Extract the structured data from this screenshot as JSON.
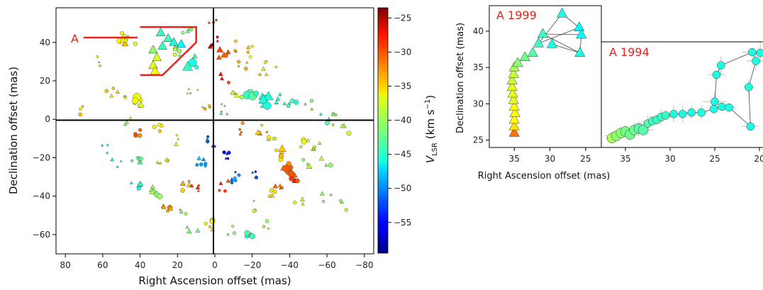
{
  "chart_data": [
    {
      "type": "scatter",
      "xlabel": "Right Ascension offset (mas)",
      "ylabel": "Declination offset (mas)",
      "xlim": [
        85,
        -85
      ],
      "ylim": [
        -70,
        58
      ],
      "xticks": [
        "80",
        "60",
        "40",
        "20",
        "0",
        "−20",
        "−40",
        "−60",
        "−80"
      ],
      "xtick_values": [
        80,
        60,
        40,
        20,
        0,
        -20,
        -40,
        -60,
        -80
      ],
      "yticks": [
        "−60",
        "−40",
        "−20",
        "0",
        "20",
        "40"
      ],
      "ytick_values": [
        -60,
        -40,
        -20,
        0,
        20,
        40
      ],
      "annotation": "A",
      "region_A": [
        [
          40,
          48
        ],
        [
          10,
          48
        ],
        [
          10,
          40
        ],
        [
          28,
          23
        ],
        [
          40,
          23
        ]
      ],
      "colorbar": {
        "label_main": "V",
        "label_sub": "LSR",
        "label_units": " (km s",
        "label_exp": "−1",
        "label_close": ")",
        "ticks": [
          "−25",
          "−30",
          "−35",
          "−40",
          "−45",
          "−50",
          "−55"
        ],
        "tick_values": [
          -25,
          -30,
          -35,
          -40,
          -45,
          -50,
          -55
        ],
        "range": [
          -59.5,
          -23.5
        ]
      },
      "clusters": [
        {
          "x": 72,
          "y": 5,
          "v": -36,
          "n": 3,
          "s": 5
        },
        {
          "x": 50,
          "y": 42,
          "v": -36,
          "n": 6,
          "s": 6
        },
        {
          "x": 45,
          "y": 42,
          "v": -38,
          "n": 4,
          "s": 5
        },
        {
          "x": 60,
          "y": 30,
          "v": -38,
          "n": 3,
          "s": 3
        },
        {
          "x": 55,
          "y": 15,
          "v": -36,
          "n": 4,
          "s": 5
        },
        {
          "x": 50,
          "y": 10,
          "v": -38,
          "n": 3,
          "s": 4
        },
        {
          "x": 48,
          "y": 0,
          "v": -40,
          "n": 3,
          "s": 4
        },
        {
          "x": 42,
          "y": 10,
          "v": -37,
          "n": 6,
          "s": 9
        },
        {
          "x": 40,
          "y": -8,
          "v": -32,
          "n": 4,
          "s": 5
        },
        {
          "x": 58,
          "y": -15,
          "v": -46,
          "n": 3,
          "s": 3
        },
        {
          "x": 52,
          "y": -22,
          "v": -44,
          "n": 3,
          "s": 4
        },
        {
          "x": 42,
          "y": -22,
          "v": -42,
          "n": 6,
          "s": 5
        },
        {
          "x": 42,
          "y": -35,
          "v": -45,
          "n": 5,
          "s": 5
        },
        {
          "x": 32,
          "y": -38,
          "v": -40,
          "n": 6,
          "s": 6
        },
        {
          "x": 25,
          "y": -45,
          "v": -34,
          "n": 5,
          "s": 6
        },
        {
          "x": 18,
          "y": -48,
          "v": -40,
          "n": 3,
          "s": 4
        },
        {
          "x": 15,
          "y": -35,
          "v": -34,
          "n": 4,
          "s": 5
        },
        {
          "x": 28,
          "y": -20,
          "v": -36,
          "n": 4,
          "s": 5
        },
        {
          "x": 30,
          "y": -5,
          "v": -36,
          "n": 4,
          "s": 5
        },
        {
          "x": 22,
          "y": -10,
          "v": -38,
          "n": 3,
          "s": 4
        },
        {
          "x": 12,
          "y": -58,
          "v": -42,
          "n": 3,
          "s": 5
        },
        {
          "x": 2,
          "y": -55,
          "v": -36,
          "n": 5,
          "s": 6
        },
        {
          "x": -8,
          "y": -57,
          "v": -40,
          "n": 3,
          "s": 4
        },
        {
          "x": -20,
          "y": -58,
          "v": -44,
          "n": 4,
          "s": 7
        },
        {
          "x": 8,
          "y": -22,
          "v": -49,
          "n": 6,
          "s": 4
        },
        {
          "x": 2,
          "y": -12,
          "v": -51,
          "n": 5,
          "s": 4
        },
        {
          "x": -5,
          "y": -18,
          "v": -55,
          "n": 5,
          "s": 4
        },
        {
          "x": -12,
          "y": -30,
          "v": -50,
          "n": 6,
          "s": 4
        },
        {
          "x": -20,
          "y": -28,
          "v": -53,
          "n": 4,
          "s": 4
        },
        {
          "x": 10,
          "y": -35,
          "v": -30,
          "n": 4,
          "s": 4
        },
        {
          "x": -5,
          "y": -35,
          "v": -30,
          "n": 4,
          "s": 4
        },
        {
          "x": 20,
          "y": 35,
          "v": -40,
          "n": 5,
          "s": 5
        },
        {
          "x": 15,
          "y": 45,
          "v": -42,
          "n": 4,
          "s": 5
        },
        {
          "x": 12,
          "y": 30,
          "v": -45,
          "n": 4,
          "s": 9
        },
        {
          "x": 2,
          "y": 50,
          "v": -30,
          "n": 3,
          "s": 4
        },
        {
          "x": 0,
          "y": 40,
          "v": -27,
          "n": 4,
          "s": 5
        },
        {
          "x": -5,
          "y": 35,
          "v": -31,
          "n": 5,
          "s": 6
        },
        {
          "x": -12,
          "y": 38,
          "v": -34,
          "n": 3,
          "s": 4
        },
        {
          "x": -15,
          "y": 28,
          "v": -34,
          "n": 4,
          "s": 4
        },
        {
          "x": -20,
          "y": 35,
          "v": -36,
          "n": 4,
          "s": 4
        },
        {
          "x": -25,
          "y": 25,
          "v": -37,
          "n": 4,
          "s": 4
        },
        {
          "x": -30,
          "y": 30,
          "v": -38,
          "n": 3,
          "s": 4
        },
        {
          "x": -5,
          "y": 22,
          "v": -30,
          "n": 3,
          "s": 4
        },
        {
          "x": -12,
          "y": 12,
          "v": -38,
          "n": 4,
          "s": 6
        },
        {
          "x": -20,
          "y": 15,
          "v": -44,
          "n": 6,
          "s": 9
        },
        {
          "x": -28,
          "y": 10,
          "v": -44,
          "n": 6,
          "s": 9
        },
        {
          "x": -35,
          "y": 10,
          "v": -44,
          "n": 4,
          "s": 6
        },
        {
          "x": -42,
          "y": 8,
          "v": -44,
          "n": 4,
          "s": 5
        },
        {
          "x": -50,
          "y": 8,
          "v": -42,
          "n": 3,
          "s": 5
        },
        {
          "x": -58,
          "y": 0,
          "v": -44,
          "n": 3,
          "s": 5
        },
        {
          "x": -65,
          "y": 0,
          "v": -40,
          "n": 4,
          "s": 4
        },
        {
          "x": -70,
          "y": -5,
          "v": -38,
          "n": 3,
          "s": 5
        },
        {
          "x": -48,
          "y": -12,
          "v": -38,
          "n": 4,
          "s": 6
        },
        {
          "x": -55,
          "y": -15,
          "v": -38,
          "n": 4,
          "s": 5
        },
        {
          "x": -48,
          "y": -22,
          "v": -40,
          "n": 4,
          "s": 5
        },
        {
          "x": -60,
          "y": -22,
          "v": -40,
          "n": 3,
          "s": 5
        },
        {
          "x": -25,
          "y": -5,
          "v": -35,
          "n": 4,
          "s": 5
        },
        {
          "x": -30,
          "y": -10,
          "v": -37,
          "n": 5,
          "s": 6
        },
        {
          "x": -35,
          "y": -18,
          "v": -35,
          "n": 5,
          "s": 7
        },
        {
          "x": -38,
          "y": -25,
          "v": -32,
          "n": 6,
          "s": 8
        },
        {
          "x": -42,
          "y": -30,
          "v": -30,
          "n": 5,
          "s": 7
        },
        {
          "x": -35,
          "y": -35,
          "v": -32,
          "n": 4,
          "s": 5
        },
        {
          "x": -30,
          "y": -40,
          "v": -35,
          "n": 4,
          "s": 5
        },
        {
          "x": -45,
          "y": -42,
          "v": -38,
          "n": 3,
          "s": 5
        },
        {
          "x": -60,
          "y": -40,
          "v": -42,
          "n": 3,
          "s": 5
        },
        {
          "x": -68,
          "y": -45,
          "v": -40,
          "n": 3,
          "s": 4
        },
        {
          "x": -12,
          "y": -5,
          "v": -32,
          "n": 4,
          "s": 4
        },
        {
          "x": -20,
          "y": -45,
          "v": -38,
          "n": 3,
          "s": 4
        },
        {
          "x": -28,
          "y": -55,
          "v": -40,
          "n": 3,
          "s": 4
        },
        {
          "x": 5,
          "y": 5,
          "v": -36,
          "n": 5,
          "s": 3
        },
        {
          "x": -5,
          "y": 5,
          "v": -42,
          "n": 5,
          "s": 3
        },
        {
          "x": 12,
          "y": 15,
          "v": -40,
          "n": 4,
          "s": 3
        }
      ],
      "a_feature": [
        {
          "x": 33,
          "y": 36,
          "v": -41
        },
        {
          "x": 31,
          "y": 32,
          "v": -38
        },
        {
          "x": 33,
          "y": 28,
          "v": -38
        },
        {
          "x": 32,
          "y": 25,
          "v": -37
        },
        {
          "x": 28,
          "y": 38,
          "v": -44
        },
        {
          "x": 25,
          "y": 42,
          "v": -44
        },
        {
          "x": 22,
          "y": 40,
          "v": -45
        },
        {
          "x": 18,
          "y": 39,
          "v": -46
        },
        {
          "x": 29,
          "y": 45,
          "v": -44
        }
      ]
    },
    {
      "type": "scatter",
      "title": "A 1999",
      "xlabel": "Right Ascension offset (mas)",
      "ylabel": "Declination offset (mas)",
      "xlim": [
        38.5,
        22.8
      ],
      "ylim": [
        24,
        43.5
      ],
      "xticks": [
        "35",
        "30",
        "25",
        "20"
      ],
      "xtick_values": [
        35,
        30,
        25,
        20
      ],
      "yticks": [
        "25",
        "30",
        "35",
        "40"
      ],
      "ytick_values": [
        25,
        30,
        35,
        40
      ],
      "points": [
        {
          "x": 35.0,
          "y": 26.0,
          "v": -32
        },
        {
          "x": 35.0,
          "y": 26.9,
          "v": -36
        },
        {
          "x": 35.0,
          "y": 27.8,
          "v": -37
        },
        {
          "x": 34.9,
          "y": 28.7,
          "v": -37
        },
        {
          "x": 35.0,
          "y": 29.6,
          "v": -37
        },
        {
          "x": 35.1,
          "y": 30.5,
          "v": -38
        },
        {
          "x": 35.2,
          "y": 31.4,
          "v": -38
        },
        {
          "x": 35.3,
          "y": 32.3,
          "v": -38
        },
        {
          "x": 35.3,
          "y": 33.2,
          "v": -39
        },
        {
          "x": 35.1,
          "y": 34.1,
          "v": -39
        },
        {
          "x": 35.0,
          "y": 35.0,
          "v": -40
        },
        {
          "x": 34.5,
          "y": 35.6,
          "v": -41
        },
        {
          "x": 33.5,
          "y": 36.4,
          "v": -42
        },
        {
          "x": 32.4,
          "y": 37.0,
          "v": -43
        },
        {
          "x": 31.6,
          "y": 38.3,
          "v": -44
        },
        {
          "x": 31.0,
          "y": 39.6,
          "v": -44
        },
        {
          "x": 29.7,
          "y": 38.2,
          "v": -45
        },
        {
          "x": 28.3,
          "y": 42.4,
          "v": -45
        },
        {
          "x": 25.9,
          "y": 40.5,
          "v": -46
        },
        {
          "x": 25.6,
          "y": 39.5,
          "v": -46
        },
        {
          "x": 25.8,
          "y": 37.0,
          "v": -45
        }
      ],
      "links": [
        [
          14,
          17
        ],
        [
          14,
          18
        ],
        [
          15,
          19
        ],
        [
          16,
          20
        ],
        [
          17,
          18
        ],
        [
          18,
          19
        ],
        [
          19,
          20
        ],
        [
          15,
          20
        ]
      ]
    },
    {
      "type": "scatter",
      "title": "A 1994",
      "xlim": [
        37.7,
        19.6
      ],
      "ylim": [
        24,
        43.5
      ],
      "points": [
        {
          "x": 36.5,
          "y": 25.3,
          "v": -40
        },
        {
          "x": 36.0,
          "y": 25.6,
          "v": -41
        },
        {
          "x": 35.5,
          "y": 26.0,
          "v": -41
        },
        {
          "x": 35.0,
          "y": 26.2,
          "v": -42
        },
        {
          "x": 34.5,
          "y": 25.8,
          "v": -42
        },
        {
          "x": 34.0,
          "y": 26.4,
          "v": -42
        },
        {
          "x": 33.5,
          "y": 26.6,
          "v": -43
        },
        {
          "x": 33.0,
          "y": 26.4,
          "v": -43
        },
        {
          "x": 32.5,
          "y": 27.3,
          "v": -43
        },
        {
          "x": 32.0,
          "y": 27.6,
          "v": -44
        },
        {
          "x": 31.5,
          "y": 27.8,
          "v": -44
        },
        {
          "x": 31.0,
          "y": 28.2,
          "v": -44
        },
        {
          "x": 30.5,
          "y": 28.4,
          "v": -44
        },
        {
          "x": 29.6,
          "y": 28.6,
          "v": -45
        },
        {
          "x": 28.6,
          "y": 28.6,
          "v": -45
        },
        {
          "x": 27.6,
          "y": 28.8,
          "v": -45
        },
        {
          "x": 26.5,
          "y": 28.8,
          "v": -45
        },
        {
          "x": 25.1,
          "y": 29.3,
          "v": -45
        },
        {
          "x": 24.2,
          "y": 29.6,
          "v": -45
        },
        {
          "x": 23.4,
          "y": 29.5,
          "v": -45
        },
        {
          "x": 25.0,
          "y": 30.3,
          "v": -45
        },
        {
          "x": 24.8,
          "y": 34.0,
          "v": -45
        },
        {
          "x": 24.3,
          "y": 35.3,
          "v": -45
        },
        {
          "x": 21.2,
          "y": 32.3,
          "v": -45
        },
        {
          "x": 21.0,
          "y": 26.9,
          "v": -45
        },
        {
          "x": 20.8,
          "y": 37.1,
          "v": -45
        },
        {
          "x": 19.9,
          "y": 37.0,
          "v": -45
        },
        {
          "x": 20.4,
          "y": 35.9,
          "v": -45
        }
      ],
      "links": [
        [
          20,
          21
        ],
        [
          21,
          22
        ],
        [
          22,
          25
        ],
        [
          25,
          26
        ],
        [
          25,
          27
        ],
        [
          27,
          23
        ],
        [
          23,
          24
        ],
        [
          24,
          19
        ]
      ]
    }
  ]
}
